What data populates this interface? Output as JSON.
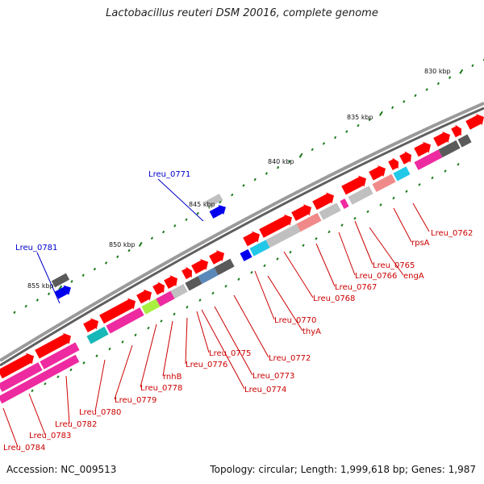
{
  "title": "Lactobacillus reuteri DSM 20016, complete genome",
  "accession_text": "Accession: NC_009513",
  "summary_text": "Topology: circular; Length: 1,999,618 bp; Genes: 1,987",
  "colors": {
    "backbone": "#808080",
    "tick": "#1a7a1a",
    "label_red": "#cc0000",
    "label_blue": "#0000cc",
    "cds": "#ff0000",
    "magenta": "#ee2aa0",
    "pink": "#f08a8a",
    "grey": "#c0c0c0",
    "dark": "#5a5a5a",
    "blue": "#0000ee",
    "cyan": "#22c8e8",
    "steel": "#5a88b8",
    "teal": "#18b8b8",
    "lime": "#a8f040"
  },
  "scale_labels": [
    {
      "text": "830 kbp"
    },
    {
      "text": "835 kbp"
    },
    {
      "text": "840 kbp"
    },
    {
      "text": "845 kbp"
    },
    {
      "text": "850 kbp"
    },
    {
      "text": "855 kbp"
    }
  ],
  "gene_labels": [
    {
      "text": "Lreu_0762",
      "color": "red"
    },
    {
      "text": "rpsA",
      "color": "red"
    },
    {
      "text": "Lreu_0765",
      "color": "red"
    },
    {
      "text": "engA",
      "color": "red"
    },
    {
      "text": "Lreu_0766",
      "color": "red"
    },
    {
      "text": "Lreu_0767",
      "color": "red"
    },
    {
      "text": "Lreu_0768",
      "color": "red"
    },
    {
      "text": "Lreu_0770",
      "color": "red"
    },
    {
      "text": "thyA",
      "color": "red"
    },
    {
      "text": "Lreu_0772",
      "color": "red"
    },
    {
      "text": "Lreu_0773",
      "color": "red"
    },
    {
      "text": "Lreu_0774",
      "color": "red"
    },
    {
      "text": "Lreu_0775",
      "color": "red"
    },
    {
      "text": "Lreu_0776",
      "color": "red"
    },
    {
      "text": "rnhB",
      "color": "red"
    },
    {
      "text": "Lreu_0778",
      "color": "red"
    },
    {
      "text": "Lreu_0779",
      "color": "red"
    },
    {
      "text": "Lreu_0780",
      "color": "red"
    },
    {
      "text": "Lreu_0782",
      "color": "red"
    },
    {
      "text": "Lreu_0783",
      "color": "red"
    },
    {
      "text": "Lreu_0784",
      "color": "red"
    },
    {
      "text": "Lreu_0771",
      "color": "blue"
    },
    {
      "text": "Lreu_0781",
      "color": "blue"
    }
  ]
}
